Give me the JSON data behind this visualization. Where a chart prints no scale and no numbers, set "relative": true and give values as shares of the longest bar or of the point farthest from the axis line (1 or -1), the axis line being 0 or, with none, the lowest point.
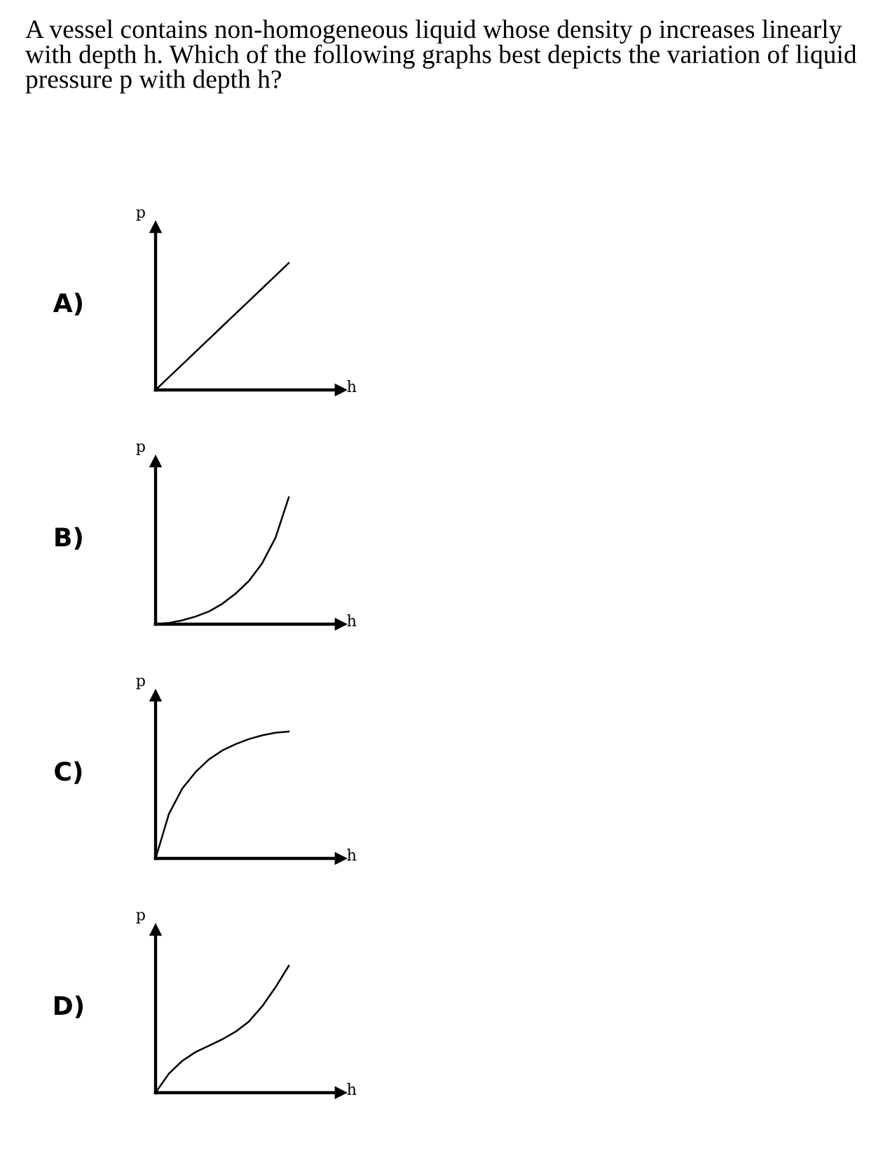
{
  "chart_data": [
    {
      "type": "other",
      "title": "A vessel contains non-homogeneous liquid whose density ρ increases linearly with depth h. Which of the following graphs best depicts the variation of liquid pressure p with depth h?"
    },
    {
      "type": "line",
      "title": "A)",
      "xlabel": "h",
      "ylabel": "p",
      "relative": true,
      "categories": [
        null,
        null,
        null,
        null,
        null,
        null,
        null,
        null,
        null,
        null,
        null
      ],
      "color": "#000000",
      "values": [
        0,
        0.1,
        0.2,
        0.3,
        0.4,
        0.5,
        0.6,
        0.7,
        0.8,
        0.9,
        1.0
      ]
    },
    {
      "type": "line",
      "title": "B)",
      "xlabel": "h",
      "ylabel": "p",
      "relative": true,
      "categories": [
        null,
        null,
        null,
        null,
        null,
        null,
        null,
        null,
        null,
        null,
        null
      ],
      "color": "#000000",
      "values": [
        0,
        0.01,
        0.03,
        0.06,
        0.1,
        0.16,
        0.24,
        0.34,
        0.48,
        0.68,
        1.0
      ]
    },
    {
      "type": "line",
      "title": "C)",
      "xlabel": "h",
      "ylabel": "p",
      "relative": true,
      "categories": [
        null,
        null,
        null,
        null,
        null,
        null,
        null,
        null,
        null,
        null,
        null
      ],
      "color": "#000000",
      "values": [
        0,
        0.35,
        0.55,
        0.68,
        0.78,
        0.85,
        0.9,
        0.94,
        0.97,
        0.99,
        1.0
      ]
    },
    {
      "type": "line",
      "title": "D)",
      "xlabel": "h",
      "ylabel": "p",
      "relative": true,
      "categories": [
        null,
        null,
        null,
        null,
        null,
        null,
        null,
        null,
        null,
        null,
        null
      ],
      "color": "#000000",
      "values": [
        0,
        0.15,
        0.25,
        0.32,
        0.37,
        0.42,
        0.48,
        0.56,
        0.68,
        0.83,
        1.0
      ]
    }
  ]
}
